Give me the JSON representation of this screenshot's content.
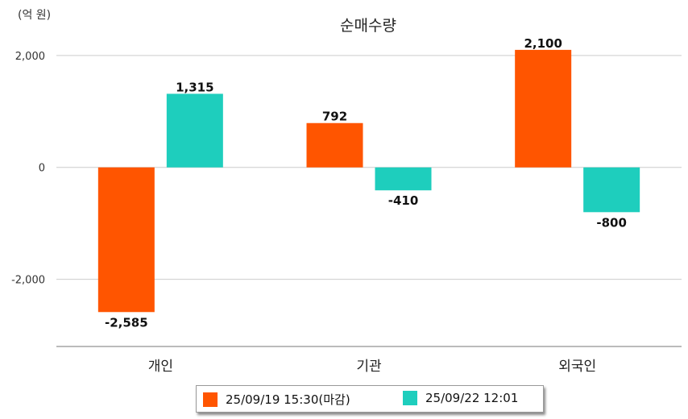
{
  "chart_data": {
    "type": "bar",
    "title": "순매수량",
    "unit_label": "(억 원)",
    "categories": [
      "개인",
      "기관",
      "외국인"
    ],
    "series": [
      {
        "name": "25/09/19 15:30(마감)",
        "color": "#ff5500",
        "values": [
          -2585,
          792,
          2100
        ],
        "labels": [
          "-2,585",
          "792",
          "2,100"
        ]
      },
      {
        "name": "25/09/22 12:01",
        "color": "#1ecebd",
        "values": [
          1315,
          -410,
          -800
        ],
        "labels": [
          "1,315",
          "-410",
          "-800"
        ]
      }
    ],
    "y_ticks": [
      2000,
      0,
      -2000
    ],
    "y_tick_labels": [
      "2,000",
      "0",
      "-2,000"
    ],
    "ylim": [
      -3200,
      2300
    ],
    "grid": true,
    "legend": "bottom"
  }
}
